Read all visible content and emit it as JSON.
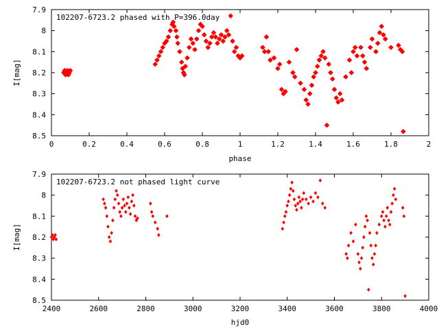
{
  "chart_data": [
    {
      "type": "scatter",
      "title": "102207-6723.2 phased with P=396.0day",
      "xlabel": "phase",
      "ylabel": "I[mag]",
      "xlim": [
        0,
        2
      ],
      "ylim": [
        8.5,
        7.9
      ],
      "y_inverted": true,
      "x_ticks": [
        "0",
        "0.2",
        "0.4",
        "0.6",
        "0.8",
        "1",
        "1.2",
        "1.4",
        "1.6",
        "1.8",
        "2"
      ],
      "y_ticks": [
        "7.9",
        "8",
        "8.1",
        "8.2",
        "8.3",
        "8.4",
        "8.5"
      ],
      "grid": false,
      "marker_color": "#ff0000",
      "marker": "star",
      "series": [
        {
          "points": [
            [
              0.065,
              8.2
            ],
            [
              0.07,
              8.19
            ],
            [
              0.075,
              8.21
            ],
            [
              0.08,
              8.2
            ],
            [
              0.085,
              8.19
            ],
            [
              0.09,
              8.21
            ],
            [
              0.095,
              8.2
            ],
            [
              0.1,
              8.19
            ],
            [
              0.55,
              8.16
            ],
            [
              0.56,
              8.14
            ],
            [
              0.57,
              8.12
            ],
            [
              0.58,
              8.1
            ],
            [
              0.59,
              8.08
            ],
            [
              0.6,
              8.06
            ],
            [
              0.61,
              8.05
            ],
            [
              0.62,
              8.03
            ],
            [
              0.63,
              8.0
            ],
            [
              0.64,
              7.97
            ],
            [
              0.645,
              7.96
            ],
            [
              0.65,
              7.98
            ],
            [
              0.66,
              8.0
            ],
            [
              0.665,
              8.03
            ],
            [
              0.67,
              8.06
            ],
            [
              0.68,
              8.1
            ],
            [
              0.69,
              8.15
            ],
            [
              0.695,
              8.18
            ],
            [
              0.7,
              8.2
            ],
            [
              0.705,
              8.21
            ],
            [
              0.71,
              8.17
            ],
            [
              0.72,
              8.13
            ],
            [
              0.73,
              8.08
            ],
            [
              0.74,
              8.04
            ],
            [
              0.75,
              8.06
            ],
            [
              0.76,
              8.09
            ],
            [
              0.77,
              8.04
            ],
            [
              0.78,
              8.0
            ],
            [
              0.79,
              7.97
            ],
            [
              0.8,
              7.98
            ],
            [
              0.81,
              8.02
            ],
            [
              0.82,
              8.05
            ],
            [
              0.83,
              8.08
            ],
            [
              0.84,
              8.06
            ],
            [
              0.85,
              8.03
            ],
            [
              0.86,
              8.01
            ],
            [
              0.87,
              8.03
            ],
            [
              0.88,
              8.06
            ],
            [
              0.89,
              8.04
            ],
            [
              0.9,
              8.02
            ],
            [
              0.91,
              8.05
            ],
            [
              0.92,
              8.03
            ],
            [
              0.93,
              8.0
            ],
            [
              0.94,
              8.02
            ],
            [
              0.95,
              7.93
            ],
            [
              0.96,
              8.05
            ],
            [
              0.97,
              8.1
            ],
            [
              0.98,
              8.08
            ],
            [
              0.99,
              8.12
            ],
            [
              1.0,
              8.13
            ],
            [
              1.01,
              8.12
            ],
            [
              1.12,
              8.08
            ],
            [
              1.13,
              8.1
            ],
            [
              1.14,
              8.03
            ],
            [
              1.15,
              8.1
            ],
            [
              1.16,
              8.14
            ],
            [
              1.18,
              8.13
            ],
            [
              1.2,
              8.18
            ],
            [
              1.21,
              8.16
            ],
            [
              1.22,
              8.28
            ],
            [
              1.23,
              8.3
            ],
            [
              1.24,
              8.29
            ],
            [
              1.26,
              8.15
            ],
            [
              1.28,
              8.2
            ],
            [
              1.29,
              8.22
            ],
            [
              1.3,
              8.09
            ],
            [
              1.32,
              8.25
            ],
            [
              1.34,
              8.28
            ],
            [
              1.35,
              8.33
            ],
            [
              1.36,
              8.35
            ],
            [
              1.37,
              8.3
            ],
            [
              1.38,
              8.26
            ],
            [
              1.39,
              8.22
            ],
            [
              1.4,
              8.2
            ],
            [
              1.41,
              8.17
            ],
            [
              1.42,
              8.14
            ],
            [
              1.43,
              8.12
            ],
            [
              1.44,
              8.1
            ],
            [
              1.45,
              8.13
            ],
            [
              1.46,
              8.45
            ],
            [
              1.47,
              8.16
            ],
            [
              1.48,
              8.2
            ],
            [
              1.49,
              8.23
            ],
            [
              1.5,
              8.28
            ],
            [
              1.51,
              8.32
            ],
            [
              1.52,
              8.34
            ],
            [
              1.53,
              8.3
            ],
            [
              1.54,
              8.33
            ],
            [
              1.56,
              8.22
            ],
            [
              1.58,
              8.14
            ],
            [
              1.59,
              8.2
            ],
            [
              1.6,
              8.1
            ],
            [
              1.61,
              8.08
            ],
            [
              1.62,
              8.12
            ],
            [
              1.64,
              8.08
            ],
            [
              1.65,
              8.12
            ],
            [
              1.66,
              8.15
            ],
            [
              1.67,
              8.18
            ],
            [
              1.69,
              8.08
            ],
            [
              1.7,
              8.04
            ],
            [
              1.72,
              8.1
            ],
            [
              1.73,
              8.06
            ],
            [
              1.74,
              8.01
            ],
            [
              1.75,
              7.98
            ],
            [
              1.76,
              8.02
            ],
            [
              1.77,
              8.04
            ],
            [
              1.8,
              8.08
            ],
            [
              1.84,
              8.07
            ],
            [
              1.85,
              8.09
            ],
            [
              1.86,
              8.1
            ],
            [
              1.865,
              8.48
            ]
          ]
        }
      ]
    },
    {
      "type": "scatter",
      "title": "102207-6723.2 not phased light curve",
      "xlabel": "hjd0",
      "ylabel": "I[mag]",
      "xlim": [
        2400,
        4000
      ],
      "ylim": [
        8.5,
        7.9
      ],
      "y_inverted": true,
      "x_ticks": [
        "2400",
        "2600",
        "2800",
        "3000",
        "3200",
        "3400",
        "3600",
        "3800",
        "4000"
      ],
      "y_ticks": [
        "7.9",
        "8",
        "8.1",
        "8.2",
        "8.3",
        "8.4",
        "8.5"
      ],
      "grid": false,
      "marker_color": "#ff0000",
      "marker": "diamond",
      "series": [
        {
          "points": [
            [
              2400,
              8.2
            ],
            [
              2404,
              8.19
            ],
            [
              2408,
              8.21
            ],
            [
              2412,
              8.2
            ],
            [
              2416,
              8.19
            ],
            [
              2420,
              8.21
            ],
            [
              2620,
              8.02
            ],
            [
              2625,
              8.04
            ],
            [
              2630,
              8.06
            ],
            [
              2635,
              8.1
            ],
            [
              2640,
              8.15
            ],
            [
              2645,
              8.2
            ],
            [
              2650,
              8.22
            ],
            [
              2655,
              8.18
            ],
            [
              2660,
              8.12
            ],
            [
              2665,
              8.06
            ],
            [
              2670,
              8.02
            ],
            [
              2675,
              7.98
            ],
            [
              2680,
              8.0
            ],
            [
              2685,
              8.04
            ],
            [
              2690,
              8.08
            ],
            [
              2695,
              8.1
            ],
            [
              2700,
              8.06
            ],
            [
              2705,
              8.02
            ],
            [
              2710,
              8.05
            ],
            [
              2715,
              8.08
            ],
            [
              2720,
              8.04
            ],
            [
              2725,
              8.01
            ],
            [
              2730,
              8.06
            ],
            [
              2735,
              8.09
            ],
            [
              2740,
              8.03
            ],
            [
              2745,
              8.0
            ],
            [
              2750,
              8.05
            ],
            [
              2755,
              8.1
            ],
            [
              2760,
              8.12
            ],
            [
              2765,
              8.11
            ],
            [
              2820,
              8.04
            ],
            [
              2825,
              8.08
            ],
            [
              2830,
              8.1
            ],
            [
              2840,
              8.13
            ],
            [
              2850,
              8.16
            ],
            [
              2855,
              8.19
            ],
            [
              2890,
              8.1
            ],
            [
              3380,
              8.16
            ],
            [
              3385,
              8.13
            ],
            [
              3390,
              8.1
            ],
            [
              3395,
              8.08
            ],
            [
              3400,
              8.05
            ],
            [
              3405,
              8.03
            ],
            [
              3410,
              8.0
            ],
            [
              3415,
              7.97
            ],
            [
              3420,
              7.94
            ],
            [
              3425,
              7.98
            ],
            [
              3430,
              8.02
            ],
            [
              3435,
              8.05
            ],
            [
              3440,
              8.07
            ],
            [
              3445,
              8.04
            ],
            [
              3450,
              8.01
            ],
            [
              3455,
              8.03
            ],
            [
              3460,
              8.06
            ],
            [
              3465,
              8.02
            ],
            [
              3470,
              7.99
            ],
            [
              3480,
              8.02
            ],
            [
              3490,
              8.04
            ],
            [
              3500,
              8.01
            ],
            [
              3510,
              8.03
            ],
            [
              3520,
              7.99
            ],
            [
              3530,
              8.01
            ],
            [
              3540,
              7.93
            ],
            [
              3550,
              8.04
            ],
            [
              3560,
              8.06
            ],
            [
              3650,
              8.28
            ],
            [
              3655,
              8.3
            ],
            [
              3660,
              8.24
            ],
            [
              3670,
              8.18
            ],
            [
              3680,
              8.22
            ],
            [
              3690,
              8.14
            ],
            [
              3700,
              8.28
            ],
            [
              3705,
              8.32
            ],
            [
              3710,
              8.35
            ],
            [
              3715,
              8.3
            ],
            [
              3720,
              8.25
            ],
            [
              3725,
              8.2
            ],
            [
              3730,
              8.15
            ],
            [
              3735,
              8.1
            ],
            [
              3740,
              8.12
            ],
            [
              3745,
              8.45
            ],
            [
              3750,
              8.18
            ],
            [
              3755,
              8.24
            ],
            [
              3760,
              8.3
            ],
            [
              3765,
              8.33
            ],
            [
              3770,
              8.28
            ],
            [
              3775,
              8.24
            ],
            [
              3780,
              8.18
            ],
            [
              3790,
              8.14
            ],
            [
              3800,
              8.1
            ],
            [
              3805,
              8.08
            ],
            [
              3810,
              8.12
            ],
            [
              3815,
              8.15
            ],
            [
              3820,
              8.1
            ],
            [
              3825,
              8.06
            ],
            [
              3830,
              8.12
            ],
            [
              3835,
              8.14
            ],
            [
              3840,
              8.08
            ],
            [
              3845,
              8.04
            ],
            [
              3850,
              8.0
            ],
            [
              3855,
              7.97
            ],
            [
              3860,
              8.02
            ],
            [
              3890,
              8.06
            ],
            [
              3895,
              8.1
            ],
            [
              3900,
              8.48
            ]
          ]
        }
      ]
    }
  ]
}
